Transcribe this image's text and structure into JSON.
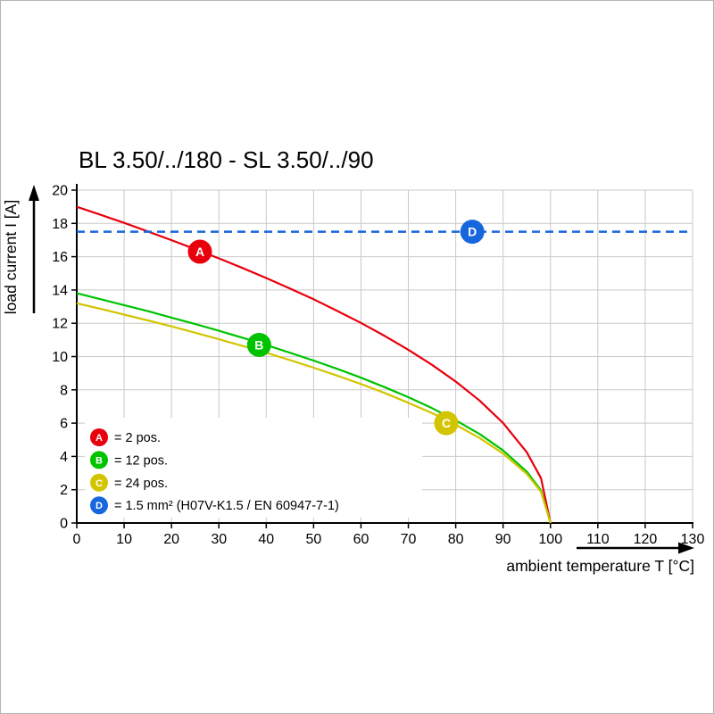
{
  "chart_data": {
    "type": "line",
    "title": "BL 3.50/../180 - SL 3.50/../90",
    "xlabel": "ambient temperature T [°C]",
    "ylabel": "load current I [A]",
    "xlim": [
      0,
      130
    ],
    "ylim": [
      0,
      20
    ],
    "xticks": [
      0,
      10,
      20,
      30,
      40,
      50,
      60,
      70,
      80,
      90,
      100,
      110,
      120,
      130
    ],
    "yticks": [
      0,
      2,
      4,
      6,
      8,
      10,
      12,
      14,
      16,
      18,
      20
    ],
    "grid": true,
    "grid_color": "#c9c9c9",
    "legend_position": "bottom-left",
    "series": [
      {
        "id": "A",
        "legend_label": "= 2 pos.",
        "color": "#e8000d",
        "line_style": "solid",
        "x": [
          0,
          5,
          10,
          15,
          20,
          25,
          30,
          35,
          40,
          45,
          50,
          55,
          60,
          65,
          70,
          75,
          80,
          85,
          90,
          95,
          98,
          100
        ],
        "y": [
          19.0,
          18.52,
          18.03,
          17.52,
          16.99,
          16.45,
          15.9,
          15.32,
          14.72,
          14.09,
          13.44,
          12.74,
          12.02,
          11.24,
          10.41,
          9.5,
          8.5,
          7.36,
          6.01,
          4.25,
          2.69,
          0
        ],
        "marker": {
          "x": 26,
          "y": 16.3
        }
      },
      {
        "id": "B",
        "legend_label": "= 12 pos.",
        "color": "#00c300",
        "line_style": "solid",
        "x": [
          0,
          5,
          10,
          15,
          20,
          25,
          30,
          35,
          40,
          45,
          50,
          55,
          60,
          65,
          70,
          75,
          80,
          85,
          90,
          95,
          98,
          100
        ],
        "y": [
          13.8,
          13.45,
          13.09,
          12.73,
          12.34,
          11.95,
          11.55,
          11.13,
          10.69,
          10.23,
          9.76,
          9.26,
          8.73,
          8.16,
          7.56,
          6.9,
          6.17,
          5.35,
          4.36,
          3.09,
          1.95,
          0
        ],
        "marker": {
          "x": 38.5,
          "y": 10.7
        }
      },
      {
        "id": "C",
        "legend_label": "= 24 pos.",
        "color": "#d2c500",
        "line_style": "solid",
        "x": [
          0,
          5,
          10,
          15,
          20,
          25,
          30,
          35,
          40,
          45,
          50,
          55,
          60,
          65,
          70,
          75,
          80,
          85,
          90,
          95,
          98,
          100
        ],
        "y": [
          13.2,
          12.87,
          12.52,
          12.17,
          11.81,
          11.43,
          11.04,
          10.64,
          10.23,
          9.79,
          9.33,
          8.85,
          8.35,
          7.81,
          7.22,
          6.6,
          5.9,
          5.11,
          4.17,
          2.95,
          1.87,
          0
        ],
        "marker": {
          "x": 78,
          "y": 6.0
        }
      },
      {
        "id": "D",
        "legend_label": "= 1.5 mm² (H07V-K1.5 / EN 60947-7-1)",
        "color": "#1766dd",
        "line_style": "dashed",
        "x": [
          0,
          130
        ],
        "y": [
          17.5,
          17.5
        ],
        "marker": {
          "x": 83.5,
          "y": 17.5
        }
      }
    ]
  }
}
